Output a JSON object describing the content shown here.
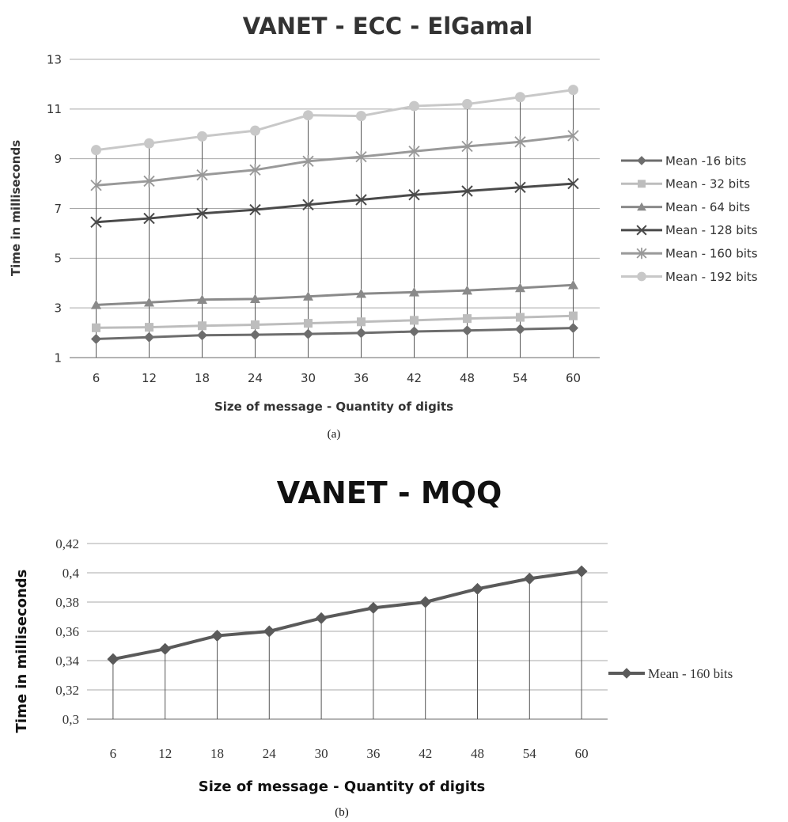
{
  "chart_data": [
    {
      "type": "line",
      "title": "VANET - ECC - ElGamal",
      "xlabel": "Size of message - Quantity of digits",
      "ylabel": "Time in milliseconds",
      "caption": "(a)",
      "categories": [
        "6",
        "12",
        "18",
        "24",
        "30",
        "36",
        "42",
        "48",
        "54",
        "60"
      ],
      "ylim": [
        1,
        13
      ],
      "yticks": [
        "1",
        "3",
        "5",
        "7",
        "9",
        "11",
        "13"
      ],
      "grid": true,
      "drop_lines": true,
      "legend_position": "right",
      "series": [
        {
          "name": "Mean -16 bits",
          "marker": "diamond",
          "color": "#6d6d6d",
          "values": [
            1.75,
            1.82,
            1.9,
            1.92,
            1.95,
            1.99,
            2.05,
            2.09,
            2.14,
            2.19
          ]
        },
        {
          "name": "Mean - 32 bits",
          "marker": "square",
          "color": "#bdbdbd",
          "values": [
            2.2,
            2.22,
            2.28,
            2.32,
            2.38,
            2.44,
            2.5,
            2.57,
            2.62,
            2.68
          ]
        },
        {
          "name": "Mean - 64 bits",
          "marker": "triangle",
          "color": "#8a8a8a",
          "values": [
            3.12,
            3.22,
            3.33,
            3.36,
            3.46,
            3.57,
            3.63,
            3.7,
            3.8,
            3.92
          ]
        },
        {
          "name": "Mean - 128 bits",
          "marker": "x",
          "color": "#4a4a4a",
          "values": [
            6.45,
            6.6,
            6.8,
            6.95,
            7.15,
            7.35,
            7.55,
            7.7,
            7.85,
            8.0
          ]
        },
        {
          "name": "Mean - 160 bits",
          "marker": "star",
          "color": "#999999",
          "values": [
            7.93,
            8.1,
            8.35,
            8.55,
            8.9,
            9.08,
            9.3,
            9.5,
            9.68,
            9.93
          ]
        },
        {
          "name": "Mean - 192 bits",
          "marker": "circle",
          "color": "#c8c8c8",
          "values": [
            9.35,
            9.62,
            9.9,
            10.13,
            10.75,
            10.72,
            11.12,
            11.2,
            11.48,
            11.77
          ]
        }
      ]
    },
    {
      "type": "line",
      "title": "VANET - MQQ",
      "xlabel": "Size of message - Quantity of digits",
      "ylabel": "Time in milliseconds",
      "caption": "(b)",
      "categories": [
        "6",
        "12",
        "18",
        "24",
        "30",
        "36",
        "42",
        "48",
        "54",
        "60"
      ],
      "ylim": [
        0.3,
        0.42
      ],
      "yticks": [
        "0,3",
        "0,32",
        "0,34",
        "0,36",
        "0,38",
        "0,4",
        "0,42"
      ],
      "grid": true,
      "drop_lines": true,
      "legend_position": "right",
      "series": [
        {
          "name": "Mean - 160 bits",
          "marker": "diamond",
          "color": "#5a5a5a",
          "values": [
            0.341,
            0.348,
            0.357,
            0.36,
            0.369,
            0.376,
            0.38,
            0.389,
            0.396,
            0.401
          ]
        }
      ]
    }
  ]
}
